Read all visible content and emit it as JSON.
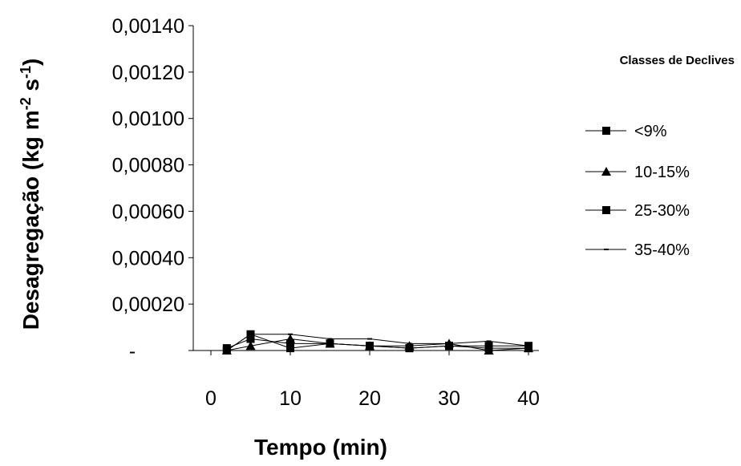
{
  "chart_data": {
    "type": "line",
    "xlabel": "Tempo (min)",
    "ylabel": {
      "prefix": "Desagregação (kg m",
      "sup1": "-2",
      "middle": " s",
      "sup2": "-1",
      "suffix": ")"
    },
    "x": [
      2,
      5,
      10,
      15,
      20,
      25,
      30,
      35,
      40
    ],
    "xlim": [
      0,
      40
    ],
    "xticks": [
      "0",
      "10",
      "20",
      "30",
      "40"
    ],
    "xtick_values": [
      0,
      10,
      20,
      30,
      40
    ],
    "ylim": [
      0,
      0.0014
    ],
    "yticks": [
      "-",
      "0,00020",
      "0,00040",
      "0,00060",
      "0,00080",
      "0,00100",
      "0,00120",
      "0,00140"
    ],
    "ytick_values": [
      0,
      0.0002,
      0.0004,
      0.0006,
      0.0008,
      0.001,
      0.0012,
      0.0014
    ],
    "legend": {
      "title": "Classes de Declives",
      "placement": "right"
    },
    "grid": false,
    "series": [
      {
        "name": "<9%",
        "marker": "square",
        "values": [
          0.0,
          7e-05,
          1e-05,
          3e-05,
          2e-05,
          1e-05,
          2e-05,
          1e-05,
          1e-05
        ]
      },
      {
        "name": "10-15%",
        "marker": "triangle",
        "values": [
          0.0,
          2e-05,
          5e-05,
          3e-05,
          2e-05,
          2e-05,
          3e-05,
          0.0,
          1e-05
        ]
      },
      {
        "name": "25-30%",
        "marker": "square",
        "values": [
          1e-05,
          5e-05,
          3e-05,
          3e-05,
          2e-05,
          1e-05,
          2e-05,
          2e-05,
          2e-05
        ]
      },
      {
        "name": "35-40%",
        "marker": "dash",
        "values": [
          0.0,
          7e-05,
          7e-05,
          5e-05,
          5e-05,
          3e-05,
          3e-05,
          4e-05,
          2e-05
        ]
      }
    ],
    "colors": {
      "line": "#000000",
      "background": "#ffffff"
    }
  }
}
